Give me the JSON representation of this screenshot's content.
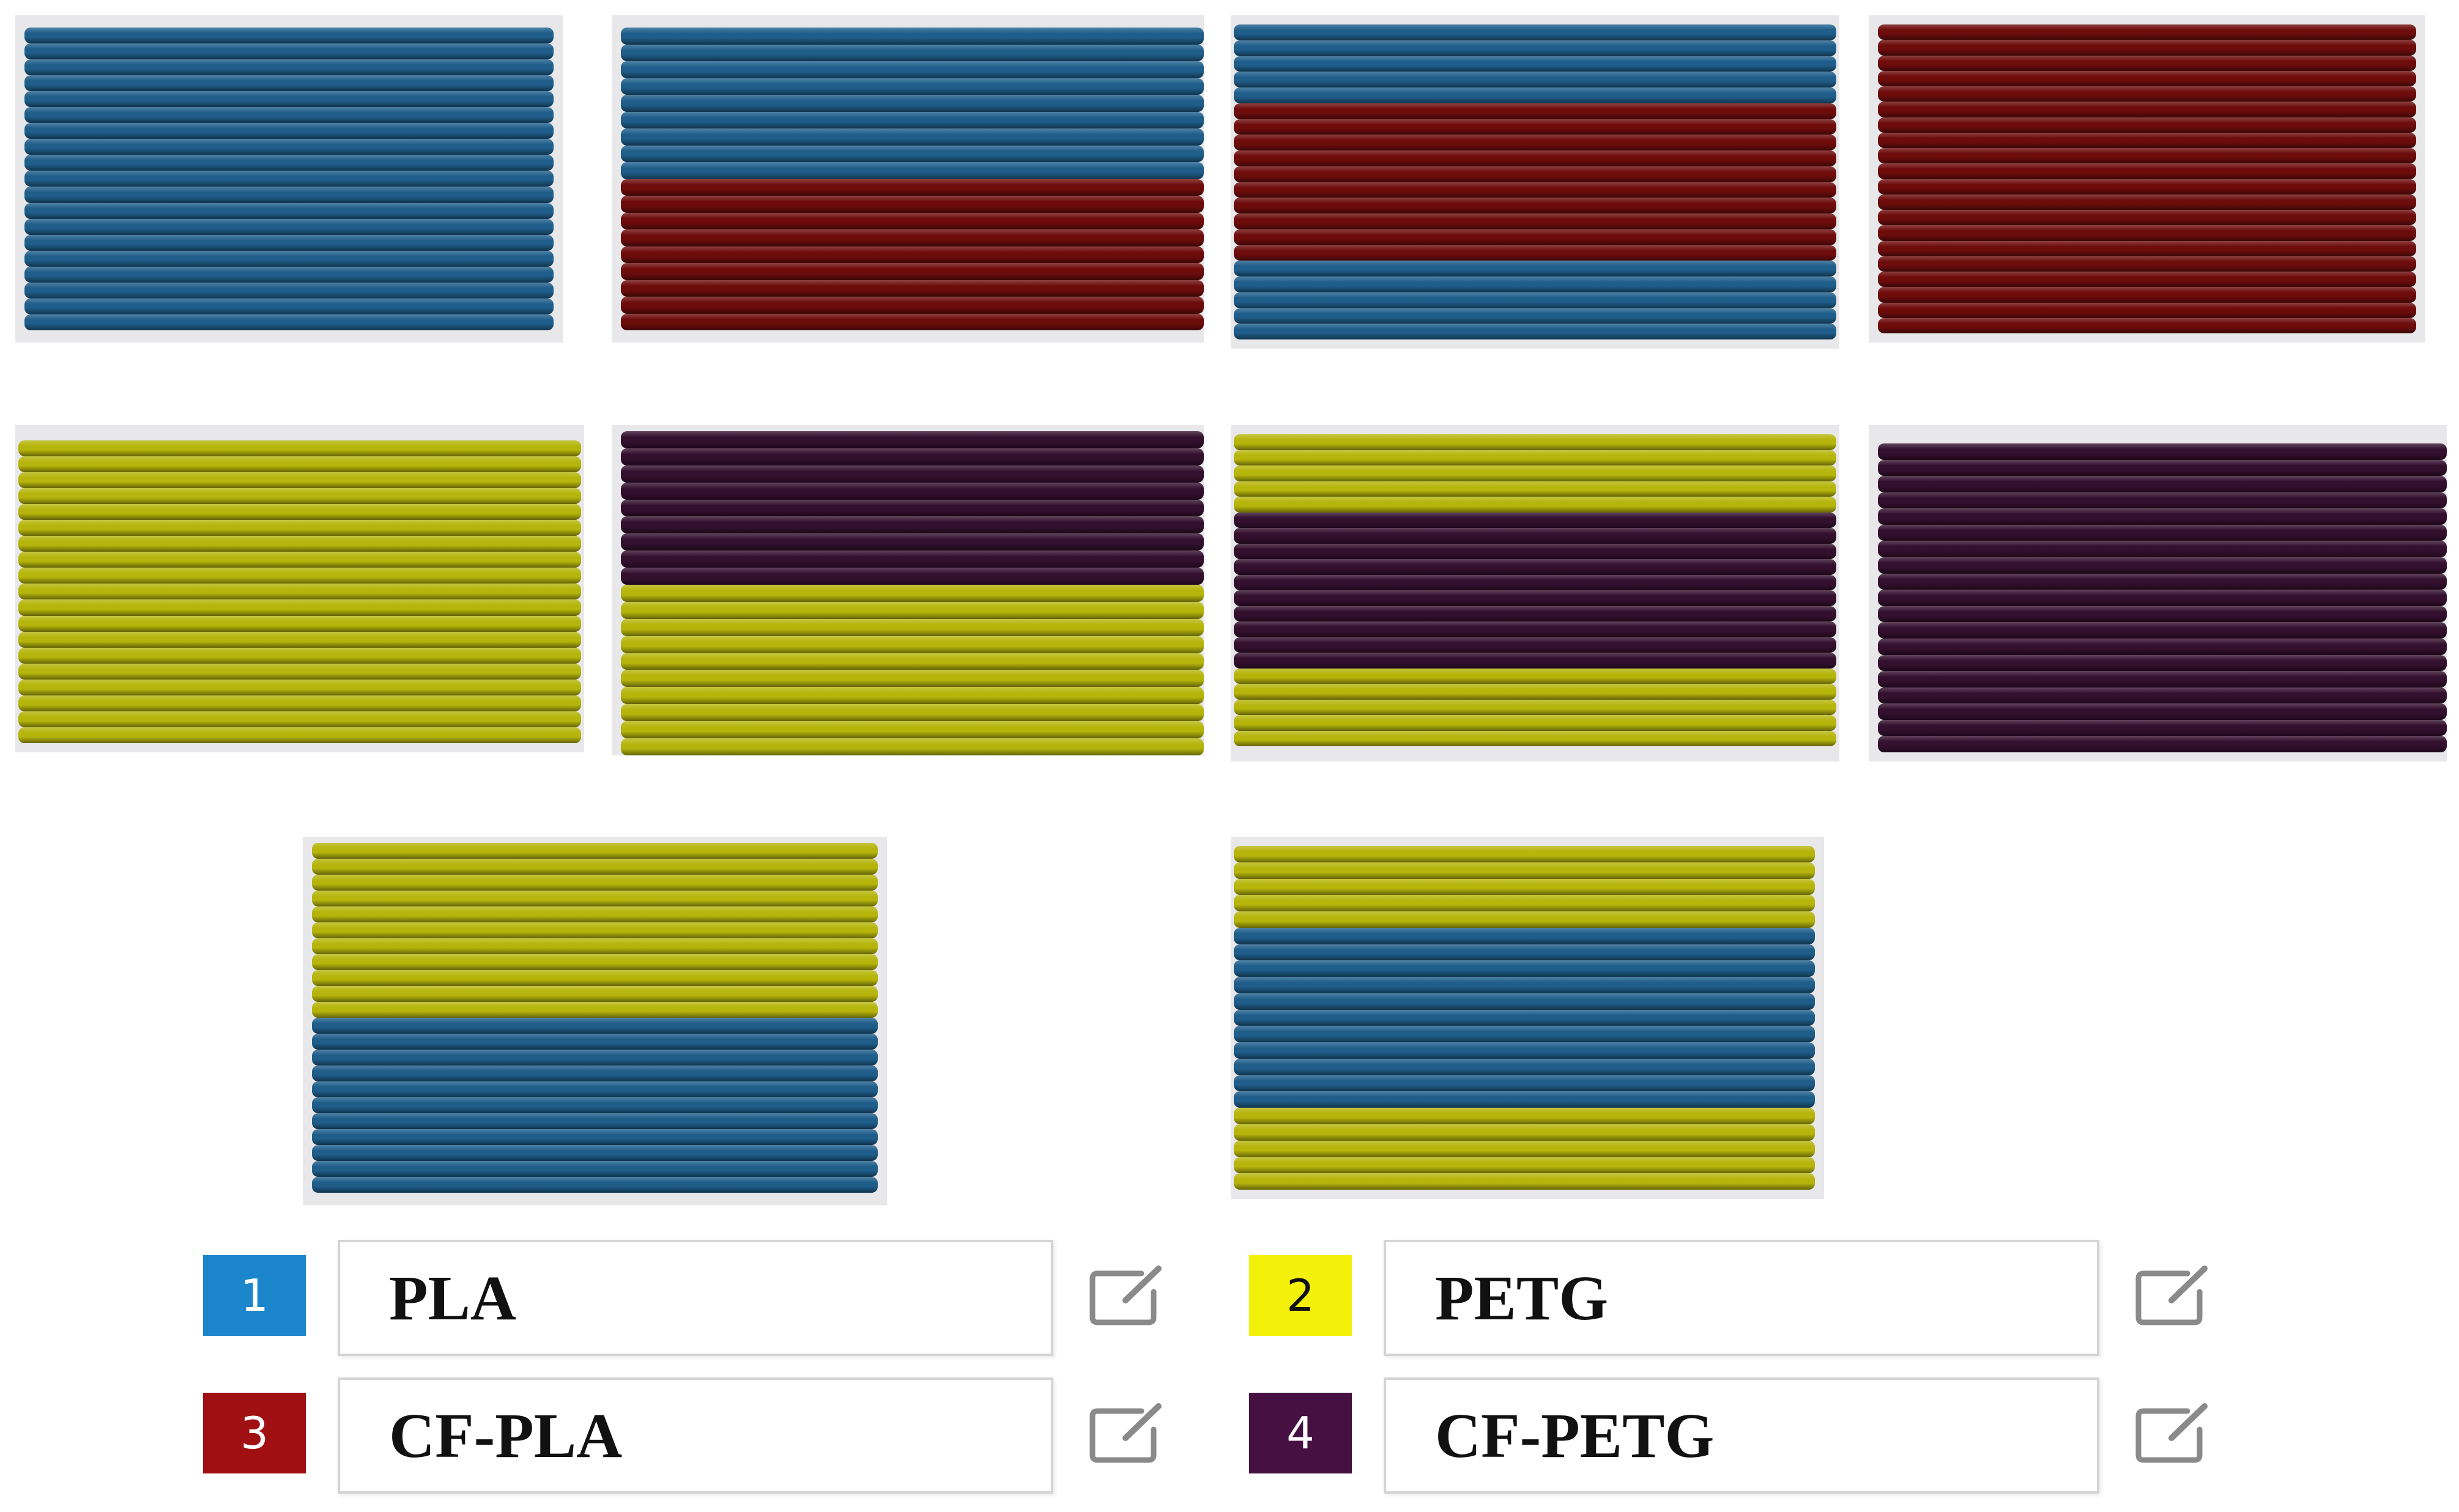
{
  "colors": {
    "blue": "#1f5e8a",
    "red": "#6e0c0c",
    "yellow": "#b6b50c",
    "purple": "#34102f",
    "badge_blue": "#1b86cc",
    "badge_yellow": "#f3f00a",
    "badge_red": "#a01012",
    "badge_purple": "#461042"
  },
  "layer_swatches": [
    {
      "name": "swatch-pla",
      "bands": [
        {
          "material": "PLA",
          "color": "blue",
          "layers": 19
        }
      ]
    },
    {
      "name": "swatch-pla-cfpla",
      "bands": [
        {
          "material": "PLA",
          "color": "blue",
          "layers": 9
        },
        {
          "material": "CF-PLA",
          "color": "red",
          "layers": 9
        }
      ]
    },
    {
      "name": "swatch-pla-cfpla-pla",
      "bands": [
        {
          "material": "PLA",
          "color": "blue",
          "layers": 5
        },
        {
          "material": "CF-PLA",
          "color": "red",
          "layers": 10
        },
        {
          "material": "PLA",
          "color": "blue",
          "layers": 5
        }
      ]
    },
    {
      "name": "swatch-cfpla",
      "bands": [
        {
          "material": "CF-PLA",
          "color": "red",
          "layers": 20
        }
      ]
    },
    {
      "name": "swatch-petg",
      "bands": [
        {
          "material": "PETG",
          "color": "yellow",
          "layers": 19
        }
      ]
    },
    {
      "name": "swatch-cfpetg-petg",
      "bands": [
        {
          "material": "CF-PETG",
          "color": "purple",
          "layers": 9
        },
        {
          "material": "PETG",
          "color": "yellow",
          "layers": 10
        }
      ]
    },
    {
      "name": "swatch-petg-cfpetg-petg",
      "bands": [
        {
          "material": "PETG",
          "color": "yellow",
          "layers": 5
        },
        {
          "material": "CF-PETG",
          "color": "purple",
          "layers": 10
        },
        {
          "material": "PETG",
          "color": "yellow",
          "layers": 5
        }
      ]
    },
    {
      "name": "swatch-cfpetg",
      "bands": [
        {
          "material": "CF-PETG",
          "color": "purple",
          "layers": 19
        }
      ]
    },
    {
      "name": "swatch-petg-pla",
      "bands": [
        {
          "material": "PETG",
          "color": "yellow",
          "layers": 11
        },
        {
          "material": "PLA",
          "color": "blue",
          "layers": 11
        }
      ]
    },
    {
      "name": "swatch-petg-pla-petg",
      "bands": [
        {
          "material": "PETG",
          "color": "yellow",
          "layers": 5
        },
        {
          "material": "PLA",
          "color": "blue",
          "layers": 11
        },
        {
          "material": "PETG",
          "color": "yellow",
          "layers": 5
        }
      ]
    }
  ],
  "filaments": [
    {
      "number": "1",
      "name": "PLA",
      "badge_color": "badge_blue",
      "number_color": "#ffffff",
      "edit_icon": "edit-icon"
    },
    {
      "number": "2",
      "name": "PETG",
      "badge_color": "badge_yellow",
      "number_color": "#111111",
      "edit_icon": "edit-icon"
    },
    {
      "number": "3",
      "name": "CF-PLA",
      "badge_color": "badge_red",
      "number_color": "#ffffff",
      "edit_icon": "edit-icon"
    },
    {
      "number": "4",
      "name": "CF-PETG",
      "badge_color": "badge_purple",
      "number_color": "#ffffff",
      "edit_icon": "edit-icon"
    }
  ]
}
